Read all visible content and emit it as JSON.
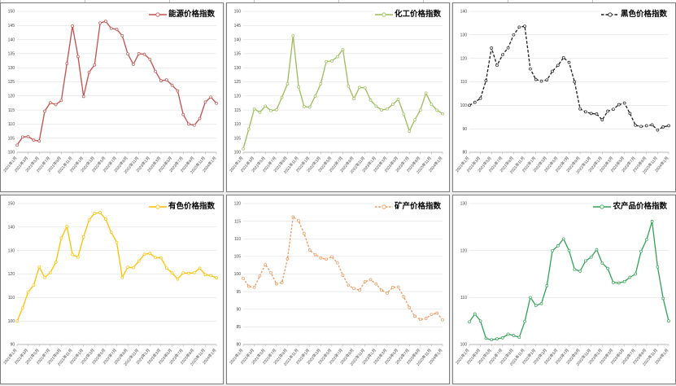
{
  "page": {
    "background": "#ffffff",
    "layout_note": ""
  },
  "axis_style": {
    "grid_color": "#d9d9d9",
    "axis_color": "#a6a6a6",
    "tick_label_color": "#404040"
  },
  "chart_data": {
    "type": "line",
    "x_axis_unit": "月",
    "x_tick_labels": [
      "2021年1月",
      "2021年3月",
      "2021年5月",
      "2021年7月",
      "2021年9月",
      "2021年11月",
      "2022年1月",
      "2022年3月",
      "2022年5月",
      "2022年7月",
      "2022年9月",
      "2022年11月",
      "2023年1月",
      "2023年3月",
      "2023年5月",
      "2023年7月",
      "2023年9月",
      "2023年11月",
      "2024年1月"
    ],
    "charts": [
      {
        "id": "energy",
        "legend": "能源价格指数",
        "color": "#C0504D",
        "line_style": "solid",
        "dash_pattern": "",
        "marker": "white-circle",
        "ylim": [
          100,
          150
        ],
        "y_step": 5,
        "values": [
          102.5,
          105.4,
          105.6,
          104.3,
          104.0,
          114.6,
          117.6,
          116.9,
          118.4,
          131.5,
          144.8,
          134.0,
          119.8,
          128.4,
          131.0,
          145.9,
          146.5,
          144.0,
          143.6,
          141.4,
          134.9,
          131.2,
          135.0,
          134.8,
          133.0,
          128.7,
          125.4,
          125.7,
          123.8,
          121.8,
          113.4,
          110.0,
          109.6,
          112.0,
          117.8,
          119.6,
          117.4
        ]
      },
      {
        "id": "chemical",
        "legend": "化工价格指数",
        "color": "#9BBB59",
        "line_style": "solid",
        "dash_pattern": "",
        "marker": "white-circle",
        "ylim": [
          100,
          150
        ],
        "y_step": 5,
        "values": [
          101.2,
          108.2,
          115.4,
          114.2,
          116.4,
          114.8,
          115.1,
          119.5,
          124.3,
          141.3,
          123.2,
          116.2,
          116.0,
          119.9,
          124.3,
          132.2,
          132.4,
          133.9,
          136.5,
          123.5,
          119.0,
          123.0,
          122.9,
          118.5,
          116.4,
          115.0,
          115.4,
          117.0,
          118.8,
          113.5,
          107.5,
          111.5,
          115.0,
          121.0,
          117.0,
          114.9,
          113.7
        ]
      },
      {
        "id": "ferrous",
        "legend": "黑色价格指数",
        "color": "#1a1a1a",
        "line_style": "dashed",
        "dash_pattern": "3.5 2",
        "marker": "white-circle",
        "ylim": [
          80,
          140
        ],
        "y_step": 10,
        "values": [
          100.0,
          101.3,
          103.0,
          110.5,
          124.4,
          117.0,
          121.5,
          124.5,
          130.0,
          133.3,
          133.7,
          115.5,
          111.0,
          110.3,
          110.8,
          114.5,
          117.0,
          120.3,
          118.3,
          110.0,
          98.5,
          97.2,
          96.5,
          96.3,
          93.8,
          97.5,
          98.3,
          100.3,
          101.0,
          96.5,
          91.5,
          91.0,
          91.3,
          91.7,
          89.5,
          90.8,
          91.3
        ]
      },
      {
        "id": "nonferrous",
        "legend": "有色价格指数",
        "color": "#FFC000",
        "line_style": "solid",
        "dash_pattern": "",
        "marker": "white-circle",
        "ylim": [
          90,
          150
        ],
        "y_step": 10,
        "values": [
          100.0,
          105.5,
          112.3,
          115.2,
          123.0,
          118.5,
          120.6,
          125.0,
          135.3,
          140.3,
          128.3,
          127.2,
          135.8,
          143.0,
          145.8,
          146.2,
          143.4,
          137.8,
          133.5,
          118.5,
          122.9,
          122.7,
          125.5,
          128.4,
          128.8,
          127.0,
          126.9,
          122.5,
          120.5,
          117.8,
          120.5,
          120.3,
          120.6,
          122.5,
          119.7,
          119.3,
          118.4
        ]
      },
      {
        "id": "mineral",
        "legend": "矿产价格指数",
        "color": "#ED9557",
        "line_style": "dashed",
        "dash_pattern": "2.5 1.8",
        "marker": "white-circle",
        "ylim": [
          80,
          120
        ],
        "y_step": 5,
        "values": [
          98.8,
          96.5,
          96.2,
          99.5,
          102.7,
          100.4,
          97.2,
          97.6,
          104.3,
          116.2,
          115.1,
          111.5,
          106.8,
          105.5,
          104.6,
          104.2,
          104.9,
          103.2,
          99.6,
          96.8,
          95.9,
          95.4,
          97.8,
          98.4,
          97.2,
          95.4,
          94.6,
          96.2,
          96.3,
          93.5,
          90.5,
          88.0,
          87.1,
          87.4,
          88.5,
          88.9,
          87.0
        ]
      },
      {
        "id": "agricultural",
        "legend": "农产品价格指数",
        "color": "#33A055",
        "line_style": "solid",
        "dash_pattern": "",
        "marker": "white-circle",
        "ylim": [
          100,
          130
        ],
        "y_step": 10,
        "values": [
          104.8,
          106.5,
          105.0,
          101.3,
          101.0,
          101.2,
          101.4,
          102.2,
          101.9,
          101.5,
          104.9,
          110.0,
          108.3,
          108.7,
          112.5,
          120.0,
          121.0,
          122.5,
          120.0,
          116.0,
          115.6,
          117.8,
          118.6,
          120.2,
          117.3,
          116.2,
          113.2,
          113.1,
          113.4,
          114.3,
          115.0,
          119.8,
          122.3,
          126.2,
          116.5,
          109.8,
          105.0
        ]
      }
    ]
  }
}
